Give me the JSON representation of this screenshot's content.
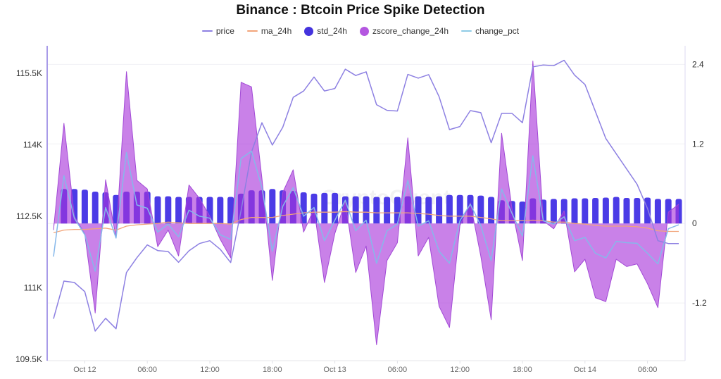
{
  "watermark": "CryptoQuant",
  "chart_data": {
    "type": "line",
    "title": "Binance : Btcoin Price Spike Detection",
    "xlabel": "",
    "ylabel_left": "",
    "ylabel_right": "",
    "legend_position": "top-center",
    "grid": true,
    "x": [
      "Oct 11 21:00",
      "Oct 11 22:00",
      "Oct 11 23:00",
      "Oct 12 00:00",
      "Oct 12 01:00",
      "Oct 12 02:00",
      "Oct 12 03:00",
      "Oct 12 04:00",
      "Oct 12 05:00",
      "Oct 12 06:00",
      "Oct 12 07:00",
      "Oct 12 08:00",
      "Oct 12 09:00",
      "Oct 12 10:00",
      "Oct 12 11:00",
      "Oct 12 12:00",
      "Oct 12 13:00",
      "Oct 12 14:00",
      "Oct 12 15:00",
      "Oct 12 16:00",
      "Oct 12 17:00",
      "Oct 12 18:00",
      "Oct 12 19:00",
      "Oct 12 20:00",
      "Oct 12 21:00",
      "Oct 12 22:00",
      "Oct 12 23:00",
      "Oct 13 00:00",
      "Oct 13 01:00",
      "Oct 13 02:00",
      "Oct 13 03:00",
      "Oct 13 04:00",
      "Oct 13 05:00",
      "Oct 13 06:00",
      "Oct 13 07:00",
      "Oct 13 08:00",
      "Oct 13 09:00",
      "Oct 13 10:00",
      "Oct 13 11:00",
      "Oct 13 12:00",
      "Oct 13 13:00",
      "Oct 13 14:00",
      "Oct 13 15:00",
      "Oct 13 16:00",
      "Oct 13 17:00",
      "Oct 13 18:00",
      "Oct 13 19:00",
      "Oct 13 20:00",
      "Oct 13 21:00",
      "Oct 13 22:00",
      "Oct 13 23:00",
      "Oct 14 00:00",
      "Oct 14 01:00",
      "Oct 14 02:00",
      "Oct 14 03:00",
      "Oct 14 04:00",
      "Oct 14 05:00",
      "Oct 14 06:00",
      "Oct 14 07:00",
      "Oct 14 08:00",
      "Oct 14 09:00"
    ],
    "x_ticks": [
      {
        "label": "Oct 12",
        "at": "Oct 12 00:00"
      },
      {
        "label": "06:00",
        "at": "Oct 12 06:00"
      },
      {
        "label": "12:00",
        "at": "Oct 12 12:00"
      },
      {
        "label": "18:00",
        "at": "Oct 12 18:00"
      },
      {
        "label": "Oct 13",
        "at": "Oct 13 00:00"
      },
      {
        "label": "06:00",
        "at": "Oct 13 06:00"
      },
      {
        "label": "12:00",
        "at": "Oct 13 12:00"
      },
      {
        "label": "18:00",
        "at": "Oct 13 18:00"
      },
      {
        "label": "Oct 14",
        "at": "Oct 14 00:00"
      },
      {
        "label": "06:00",
        "at": "Oct 14 06:00"
      }
    ],
    "y_left": {
      "min": 109470,
      "max": 116076,
      "ticks": [
        {
          "value": 115500,
          "label": "115.5K"
        },
        {
          "value": 114000,
          "label": "114K"
        },
        {
          "value": 112500,
          "label": "112.5K"
        },
        {
          "value": 111000,
          "label": "111K"
        },
        {
          "value": 109500,
          "label": "109.5K"
        }
      ]
    },
    "y_right": {
      "min": -2.07,
      "max": 2.68,
      "ticks": [
        {
          "value": 2.4,
          "label": "2.4"
        },
        {
          "value": 1.2,
          "label": "1.2"
        },
        {
          "value": 0,
          "label": "0"
        },
        {
          "value": -1.2,
          "label": "-1.2"
        }
      ]
    },
    "series": [
      {
        "name": "price",
        "type": "line",
        "axis": "left",
        "color": "#8d80e2",
        "legend_icon": "line",
        "values": [
          110350,
          111140,
          111110,
          110920,
          110090,
          110360,
          110140,
          111320,
          111630,
          111900,
          111780,
          111760,
          111535,
          111776,
          111928,
          111987,
          111806,
          111529,
          112620,
          113850,
          114462,
          113993,
          114367,
          114994,
          115127,
          115422,
          115127,
          115180,
          115585,
          115452,
          115530,
          114840,
          114722,
          114707,
          115476,
          115397,
          115471,
          115009,
          114318,
          114382,
          114717,
          114673,
          114042,
          114658,
          114658,
          114462,
          115634,
          115674,
          115659,
          115771,
          115461,
          115264,
          114698,
          114131,
          113811,
          113491,
          113170,
          112663,
          111987,
          111928,
          111928
        ]
      },
      {
        "name": "ma_24h",
        "type": "line",
        "axis": "right",
        "color": "#f2a57a",
        "legend_icon": "line",
        "values": [
          -0.14,
          -0.1,
          -0.09,
          -0.09,
          -0.08,
          -0.07,
          -0.1,
          -0.04,
          -0.02,
          -0.01,
          0.0,
          0.02,
          0.01,
          0.0,
          0.0,
          0.0,
          0.0,
          -0.01,
          0.06,
          0.09,
          0.09,
          0.09,
          0.12,
          0.14,
          0.16,
          0.17,
          0.17,
          0.17,
          0.18,
          0.17,
          0.17,
          0.16,
          0.16,
          0.16,
          0.16,
          0.15,
          0.14,
          0.12,
          0.11,
          0.11,
          0.11,
          0.09,
          0.07,
          0.04,
          0.04,
          0.04,
          0.05,
          0.04,
          0.02,
          0.02,
          0.0,
          -0.01,
          -0.03,
          -0.04,
          -0.04,
          -0.04,
          -0.05,
          -0.07,
          -0.11,
          -0.12,
          -0.12
        ]
      },
      {
        "name": "std_24h",
        "type": "bar",
        "axis": "right",
        "color": "#4b3be6",
        "legend_color": "#4433dd",
        "legend_icon": "circle",
        "values": [
          null,
          0.52,
          0.52,
          0.51,
          0.48,
          0.47,
          0.43,
          0.48,
          0.48,
          0.48,
          0.41,
          0.41,
          0.4,
          0.4,
          0.4,
          0.4,
          0.4,
          0.4,
          0.45,
          0.5,
          0.5,
          0.52,
          0.5,
          0.49,
          0.47,
          0.45,
          0.46,
          0.46,
          0.41,
          0.41,
          0.41,
          0.4,
          0.4,
          0.4,
          0.41,
          0.41,
          0.4,
          0.41,
          0.43,
          0.43,
          0.43,
          0.42,
          0.4,
          0.35,
          0.34,
          0.33,
          0.38,
          0.36,
          0.37,
          0.37,
          0.38,
          0.38,
          0.385,
          0.39,
          0.4,
          0.385,
          0.385,
          0.39,
          0.37,
          0.37,
          0.37
        ]
      },
      {
        "name": "zscore_change_24h",
        "type": "area",
        "axis": "right",
        "color": "#b457e0",
        "legend_icon": "circle",
        "values": [
          -0.1,
          1.51,
          0.11,
          -0.16,
          -1.35,
          0.66,
          -0.22,
          2.29,
          0.65,
          0.52,
          -0.35,
          -0.1,
          -0.49,
          0.58,
          0.38,
          0.11,
          -0.24,
          -0.52,
          2.13,
          2.06,
          0.68,
          -0.86,
          0.47,
          0.81,
          -0.13,
          0.22,
          -0.89,
          -0.15,
          0.33,
          -0.74,
          -0.34,
          -1.83,
          -0.56,
          -0.29,
          1.29,
          -0.49,
          -0.21,
          -1.25,
          -1.57,
          -0.03,
          0.31,
          -0.49,
          -1.45,
          1.36,
          0.22,
          -0.56,
          2.45,
          0.04,
          -0.08,
          0.19,
          -0.73,
          -0.54,
          -1.12,
          -1.18,
          -0.54,
          -0.65,
          -0.61,
          -0.91,
          -1.27,
          0.17,
          0.29
        ]
      },
      {
        "name": "change_pct",
        "type": "line",
        "axis": "right",
        "color": "#86b8ea",
        "legend_color": "#8fcbe6",
        "legend_icon": "line",
        "values": [
          -0.5,
          0.72,
          0.08,
          -0.17,
          -0.72,
          0.24,
          -0.22,
          1.07,
          0.28,
          0.23,
          -0.13,
          -0.01,
          -0.2,
          0.2,
          0.11,
          0.08,
          -0.17,
          -0.24,
          0.98,
          1.09,
          0.54,
          -0.42,
          0.26,
          0.54,
          0.11,
          0.24,
          -0.26,
          0.05,
          0.35,
          -0.11,
          0.05,
          -0.6,
          -0.11,
          -0.01,
          0.65,
          -0.04,
          0.04,
          -0.42,
          -0.6,
          0.04,
          0.29,
          -0.03,
          -0.56,
          0.52,
          0.15,
          -0.19,
          1.02,
          0.04,
          -0.01,
          0.1,
          -0.26,
          -0.21,
          -0.45,
          -0.52,
          -0.27,
          -0.29,
          -0.3,
          -0.45,
          -0.61,
          -0.08,
          -0.02
        ]
      }
    ]
  }
}
